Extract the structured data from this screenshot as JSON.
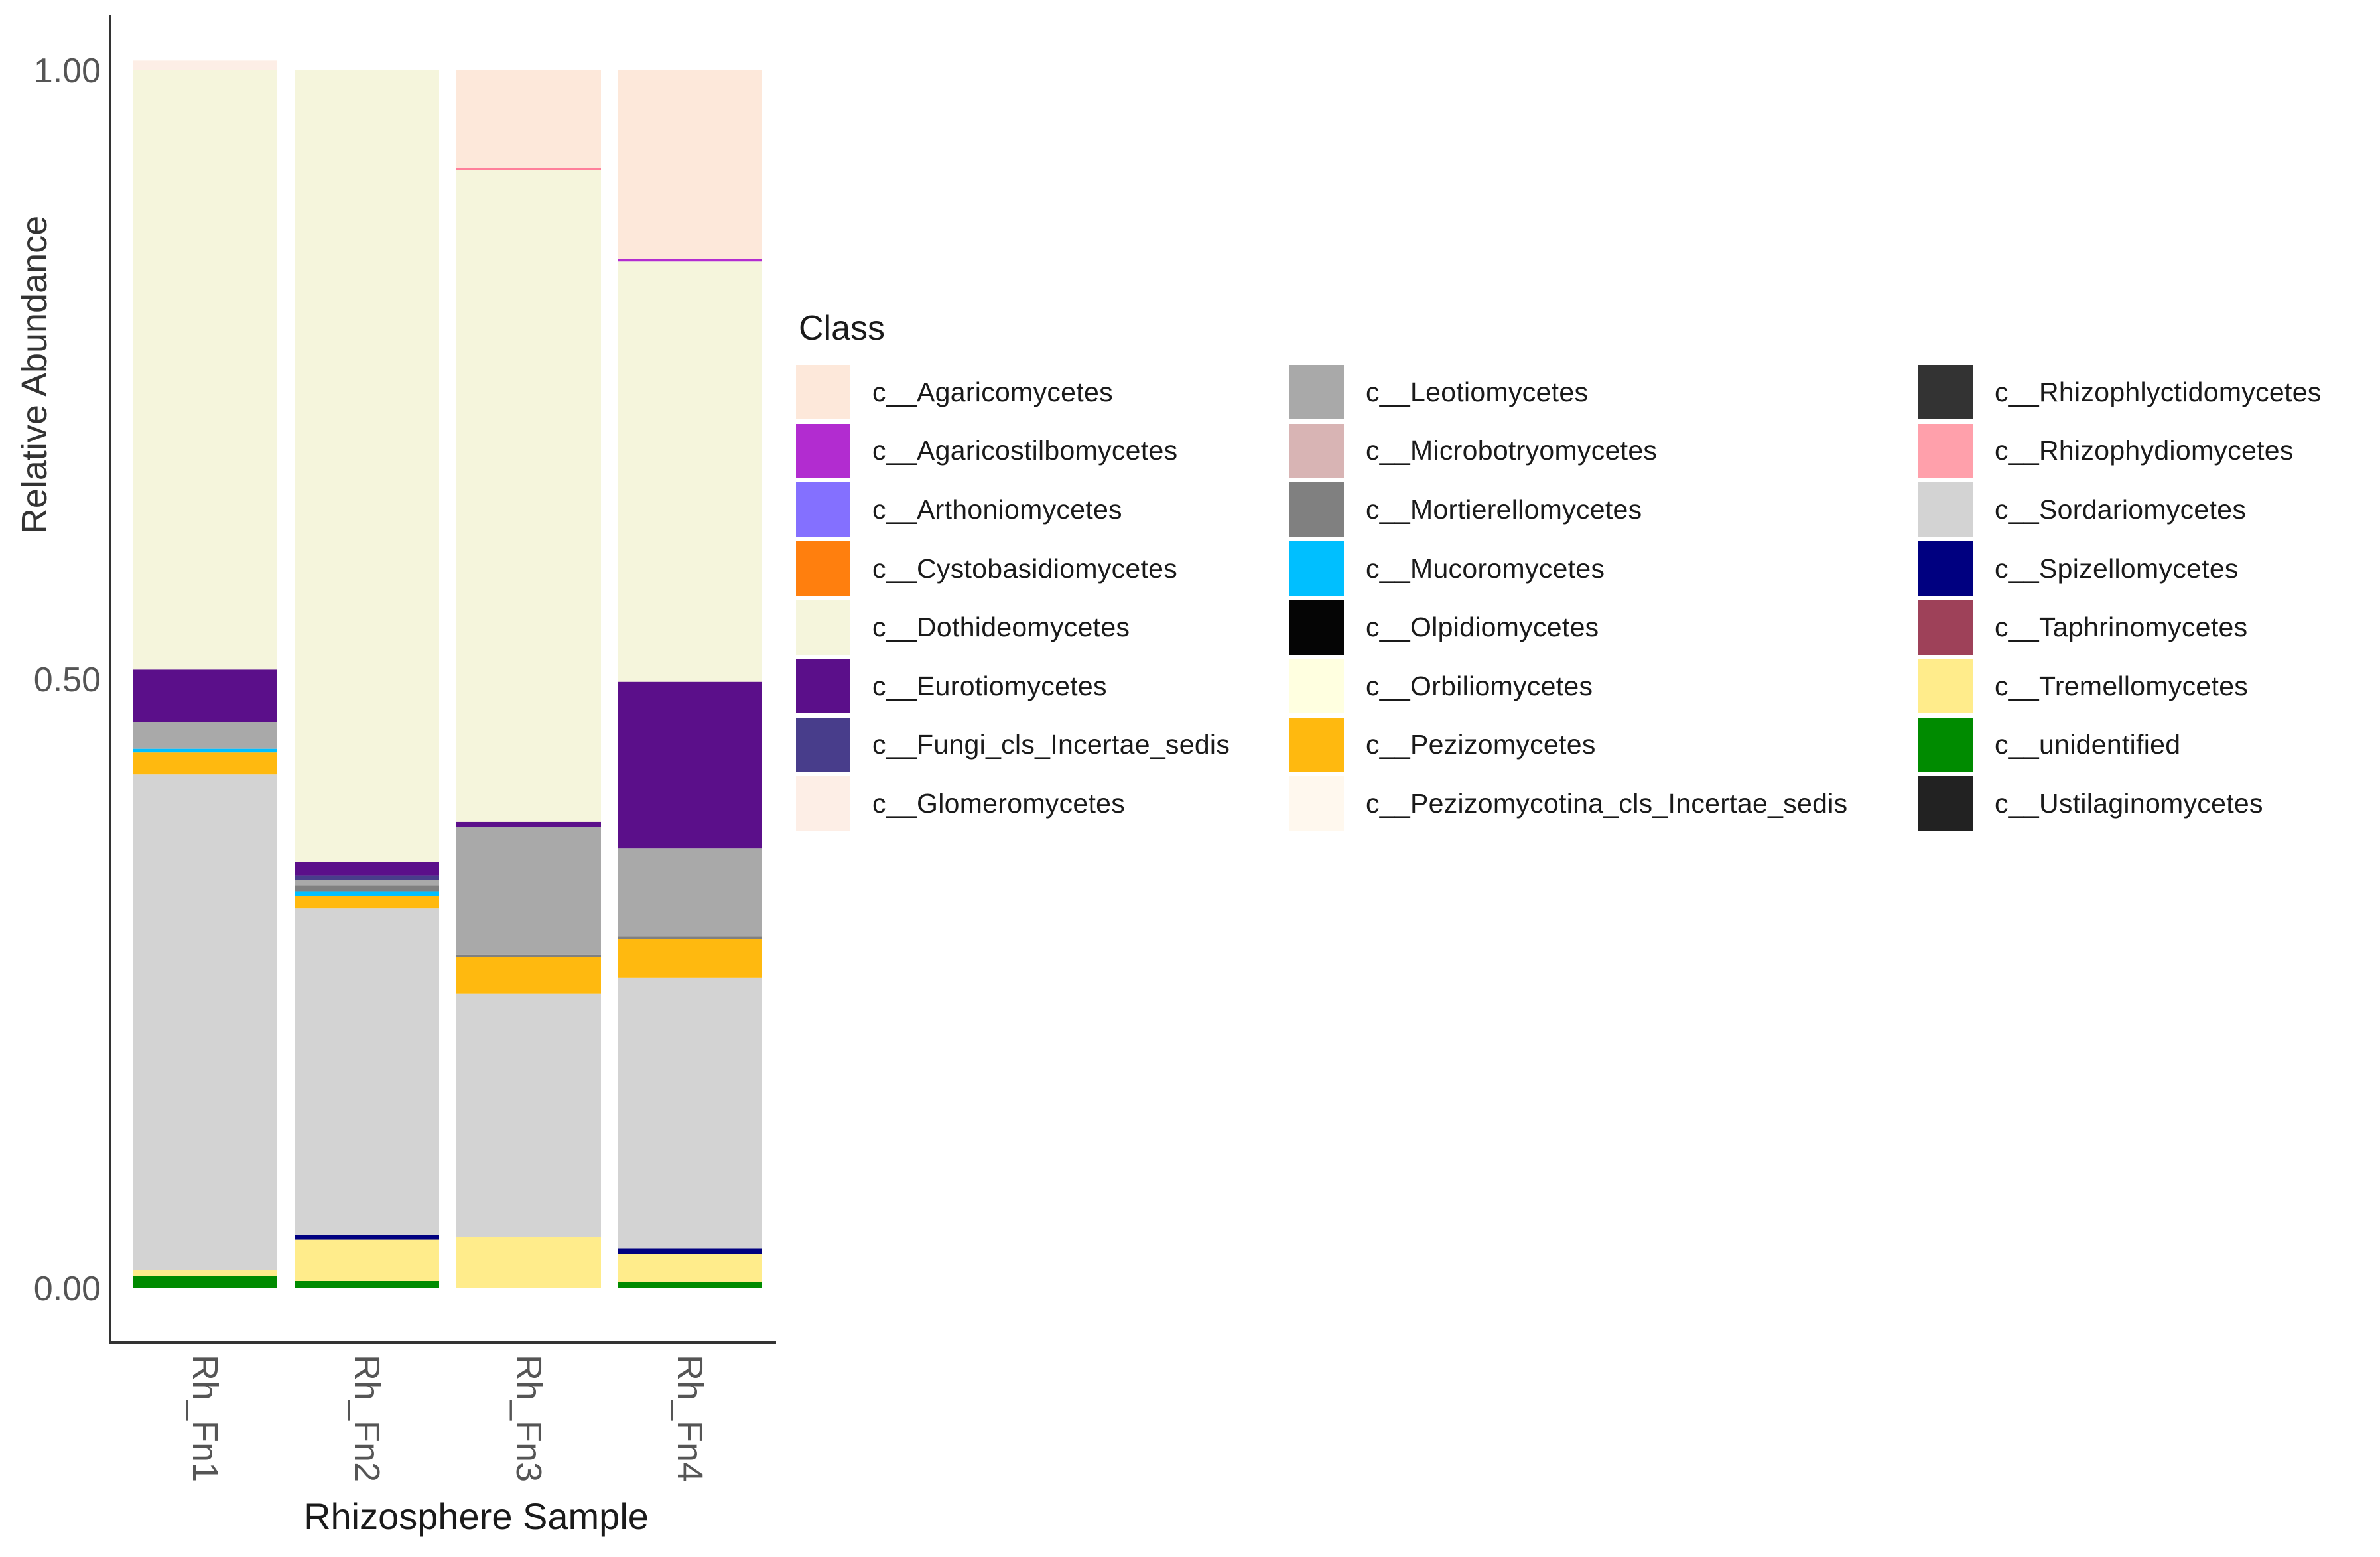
{
  "chart_data": {
    "type": "bar",
    "stacked": true,
    "xlabel": "Rhizosphere Sample",
    "ylabel": "Relative Abundance",
    "ylim": [
      0,
      1
    ],
    "yticks": [
      0.0,
      0.5,
      1.0
    ],
    "ytick_labels": [
      "0.00",
      "0.50",
      "1.00"
    ],
    "categories": [
      "Rh_Fn1",
      "Rh_Fn2",
      "Rh_Fn3",
      "Rh_Fn4"
    ],
    "legend_title": "Class",
    "legend_position": "right",
    "series": [
      {
        "name": "c__unidentified",
        "color": "#008B00",
        "values": [
          0.01,
          0.006,
          0.0,
          0.005
        ]
      },
      {
        "name": "c__Tremellomycetes",
        "color": "#FFEC8B",
        "values": [
          0.005,
          0.034,
          0.042,
          0.023
        ]
      },
      {
        "name": "c__Spizellomycetes",
        "color": "#000080",
        "values": [
          0.0,
          0.004,
          0.0,
          0.005
        ]
      },
      {
        "name": "c__Sordariomycetes",
        "color": "#D3D3D3",
        "values": [
          0.407,
          0.268,
          0.2,
          0.222
        ]
      },
      {
        "name": "c__Rhizophydiomycetes",
        "color": "#FFA0AB",
        "values": [
          0.0,
          0.0,
          0.0,
          0.0
        ]
      },
      {
        "name": "c__Pezizomycetes",
        "color": "#FFB90F",
        "values": [
          0.018,
          0.01,
          0.03,
          0.032
        ]
      },
      {
        "name": "c__Mucoromycetes",
        "color": "#00BFFF",
        "values": [
          0.003,
          0.004,
          0.0,
          0.0
        ]
      },
      {
        "name": "c__Mortierellomycetes",
        "color": "#808080",
        "values": [
          0.0,
          0.005,
          0.002,
          0.002
        ]
      },
      {
        "name": "c__Leotiomycetes",
        "color": "#A9A9A9",
        "values": [
          0.022,
          0.004,
          0.105,
          0.072
        ]
      },
      {
        "name": "c__Fungi_cls_Incertae_sedis",
        "color": "#483D8B",
        "values": [
          0.0,
          0.004,
          0.0,
          0.0
        ]
      },
      {
        "name": "c__Eurotiomycetes",
        "color": "#5B0F8A",
        "values": [
          0.043,
          0.011,
          0.004,
          0.137
        ]
      },
      {
        "name": "c__Dothideomycetes",
        "color": "#F5F5DC",
        "values": [
          0.492,
          0.65,
          0.535,
          0.345
        ]
      },
      {
        "name": "c__Agaricostilbomycetes",
        "color": "#B22CD0",
        "values": [
          0.0,
          0.0,
          0.0,
          0.002
        ]
      },
      {
        "name": "c__Rhizophydiomycetes",
        "color": "#FF7F9A",
        "values": [
          0.0,
          0.0,
          0.002,
          0.0
        ]
      },
      {
        "name": "c__Agaricomycetes",
        "color": "#FDE8DA",
        "values": [
          0.0,
          0.0,
          0.08,
          0.155
        ]
      },
      {
        "name": "c__Glomeromycetes",
        "color": "#FDEEE6",
        "values": [
          0.008,
          0.0,
          0.0,
          0.0
        ]
      }
    ]
  },
  "legend": {
    "title": "Class",
    "items": [
      {
        "label": "c__Agaricomycetes",
        "color": "#FDE8DA"
      },
      {
        "label": "c__Agaricostilbomycetes",
        "color": "#B22CD0"
      },
      {
        "label": "c__Arthoniomycetes",
        "color": "#8470FF"
      },
      {
        "label": "c__Cystobasidiomycetes",
        "color": "#FF7F0E"
      },
      {
        "label": "c__Dothideomycetes",
        "color": "#F5F5DC"
      },
      {
        "label": "c__Eurotiomycetes",
        "color": "#5B0F8A"
      },
      {
        "label": "c__Fungi_cls_Incertae_sedis",
        "color": "#483D8B"
      },
      {
        "label": "c__Glomeromycetes",
        "color": "#FDEEE6"
      },
      {
        "label": "c__Leotiomycetes",
        "color": "#A9A9A9"
      },
      {
        "label": "c__Microbotryomycetes",
        "color": "#D8B4B4"
      },
      {
        "label": "c__Mortierellomycetes",
        "color": "#808080"
      },
      {
        "label": "c__Mucoromycetes",
        "color": "#00BFFF"
      },
      {
        "label": "c__Olpidiomycetes",
        "color": "#050505"
      },
      {
        "label": "c__Orbiliomycetes",
        "color": "#FFFFE0"
      },
      {
        "label": "c__Pezizomycetes",
        "color": "#FFB90F"
      },
      {
        "label": "c__Pezizomycotina_cls_Incertae_sedis",
        "color": "#FFF8EE"
      },
      {
        "label": "c__Rhizophlyctidomycetes",
        "color": "#333333"
      },
      {
        "label": "c__Rhizophydiomycetes",
        "color": "#FFA0AB"
      },
      {
        "label": "c__Sordariomycetes",
        "color": "#D3D3D3"
      },
      {
        "label": "c__Spizellomycetes",
        "color": "#000080"
      },
      {
        "label": "c__Taphrinomycetes",
        "color": "#9E4159"
      },
      {
        "label": "c__Tremellomycetes",
        "color": "#FFEC8B"
      },
      {
        "label": "c__unidentified",
        "color": "#008B00"
      },
      {
        "label": "c__Ustilaginomycetes",
        "color": "#222222"
      }
    ]
  }
}
